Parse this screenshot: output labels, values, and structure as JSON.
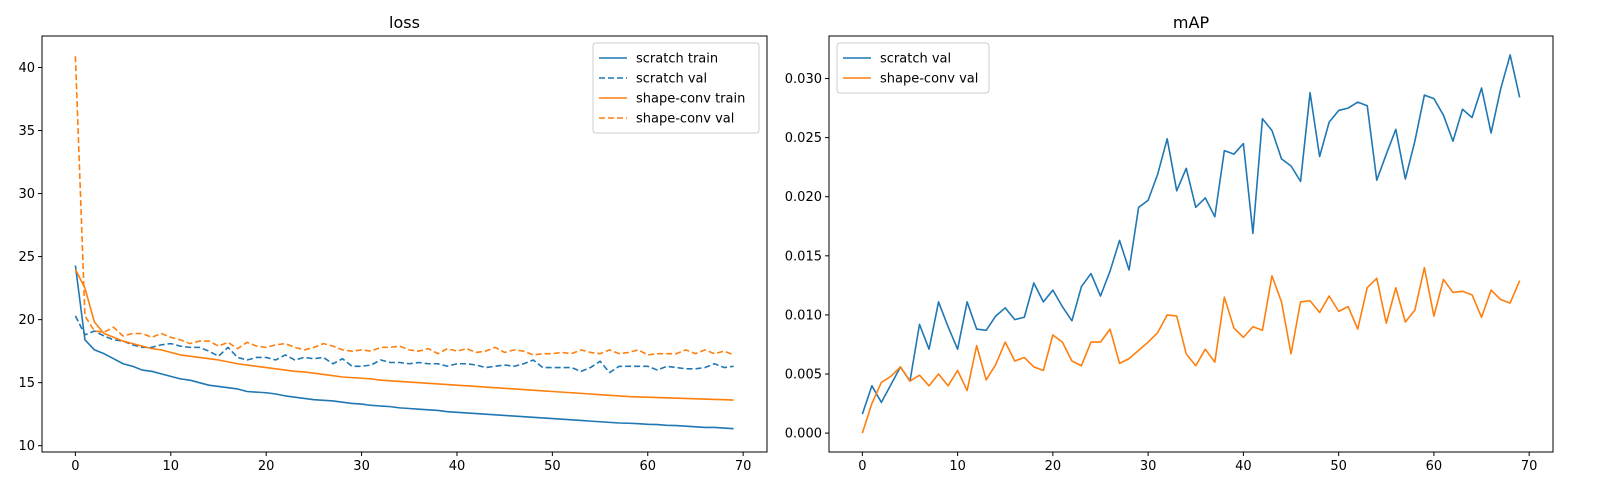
{
  "colors": {
    "scratch": "#1f77b4",
    "shape_conv": "#ff7f0e"
  },
  "chart_data": [
    {
      "type": "line",
      "title": "loss",
      "xlabel": "",
      "ylabel": "",
      "xlim": [
        -3.5,
        72.5
      ],
      "ylim": [
        9.5,
        42.5
      ],
      "xticks": [
        0,
        10,
        20,
        30,
        40,
        50,
        60,
        70
      ],
      "yticks": [
        10,
        15,
        20,
        25,
        30,
        35,
        40
      ],
      "legend": "top-right",
      "series": [
        {
          "name": "scratch train",
          "color": "#1f77b4",
          "dash": "solid",
          "values": [
            24.3,
            18.4,
            17.6,
            17.3,
            16.9,
            16.5,
            16.3,
            16.0,
            15.9,
            15.7,
            15.5,
            15.3,
            15.2,
            15.0,
            14.8,
            14.7,
            14.6,
            14.5,
            14.3,
            14.25,
            14.2,
            14.1,
            13.95,
            13.85,
            13.75,
            13.65,
            13.6,
            13.55,
            13.45,
            13.35,
            13.3,
            13.2,
            13.15,
            13.1,
            13.0,
            12.95,
            12.9,
            12.85,
            12.8,
            12.7,
            12.65,
            12.6,
            12.55,
            12.5,
            12.45,
            12.4,
            12.35,
            12.3,
            12.25,
            12.2,
            12.15,
            12.1,
            12.05,
            12.0,
            11.95,
            11.9,
            11.85,
            11.8,
            11.78,
            11.75,
            11.7,
            11.68,
            11.62,
            11.6,
            11.55,
            11.5,
            11.45,
            11.45,
            11.4,
            11.35
          ]
        },
        {
          "name": "scratch val",
          "color": "#1f77b4",
          "dash": "dashed",
          "values": [
            20.3,
            18.8,
            19.1,
            18.7,
            18.4,
            18.3,
            18.0,
            17.8,
            17.8,
            18.0,
            18.1,
            17.9,
            17.8,
            17.8,
            17.5,
            17.1,
            17.8,
            17.0,
            16.8,
            17.0,
            17.0,
            16.8,
            17.2,
            16.8,
            17.0,
            16.9,
            17.0,
            16.5,
            16.9,
            16.3,
            16.3,
            16.4,
            16.8,
            16.6,
            16.6,
            16.5,
            16.6,
            16.5,
            16.5,
            16.3,
            16.5,
            16.5,
            16.4,
            16.2,
            16.3,
            16.4,
            16.3,
            16.5,
            16.8,
            16.2,
            16.2,
            16.2,
            16.2,
            15.9,
            16.2,
            16.7,
            15.8,
            16.3,
            16.3,
            16.3,
            16.3,
            16.0,
            16.3,
            16.2,
            16.1,
            16.1,
            16.2,
            16.5,
            16.2,
            16.3
          ]
        },
        {
          "name": "shape-conv train",
          "color": "#ff7f0e",
          "dash": "solid",
          "values": [
            24.0,
            22.5,
            19.8,
            18.9,
            18.6,
            18.3,
            18.1,
            17.9,
            17.7,
            17.6,
            17.4,
            17.2,
            17.1,
            17.0,
            16.9,
            16.8,
            16.65,
            16.5,
            16.4,
            16.3,
            16.2,
            16.1,
            16.0,
            15.9,
            15.85,
            15.75,
            15.65,
            15.55,
            15.45,
            15.4,
            15.35,
            15.3,
            15.2,
            15.15,
            15.1,
            15.05,
            15.0,
            14.95,
            14.9,
            14.85,
            14.8,
            14.75,
            14.7,
            14.65,
            14.6,
            14.55,
            14.5,
            14.45,
            14.4,
            14.35,
            14.3,
            14.25,
            14.2,
            14.15,
            14.1,
            14.05,
            14.0,
            13.95,
            13.9,
            13.87,
            13.85,
            13.82,
            13.8,
            13.77,
            13.75,
            13.72,
            13.7,
            13.67,
            13.65,
            13.62
          ]
        },
        {
          "name": "shape-conv val",
          "color": "#ff7f0e",
          "dash": "dashed",
          "values": [
            40.9,
            20.3,
            19.1,
            19.0,
            19.4,
            18.7,
            18.9,
            18.9,
            18.6,
            18.9,
            18.6,
            18.4,
            18.1,
            18.3,
            18.3,
            17.9,
            18.2,
            17.7,
            18.2,
            17.9,
            17.8,
            18.0,
            18.1,
            17.8,
            17.6,
            17.8,
            18.1,
            17.9,
            17.6,
            17.5,
            17.6,
            17.5,
            17.8,
            17.8,
            17.9,
            17.6,
            17.5,
            17.7,
            17.3,
            17.7,
            17.5,
            17.7,
            17.4,
            17.5,
            17.8,
            17.4,
            17.6,
            17.5,
            17.2,
            17.3,
            17.3,
            17.4,
            17.3,
            17.6,
            17.4,
            17.3,
            17.6,
            17.3,
            17.4,
            17.6,
            17.2,
            17.3,
            17.3,
            17.3,
            17.6,
            17.3,
            17.6,
            17.3,
            17.5,
            17.2
          ]
        }
      ]
    },
    {
      "type": "line",
      "title": "mAP",
      "xlabel": "",
      "ylabel": "",
      "xlim": [
        -3.5,
        72.5
      ],
      "ylim": [
        -0.0016,
        0.0336
      ],
      "xticks": [
        0,
        10,
        20,
        30,
        40,
        50,
        60,
        70
      ],
      "yticks": [
        0.0,
        0.005,
        0.01,
        0.015,
        0.02,
        0.025,
        0.03
      ],
      "ytick_labels": [
        "0.000",
        "0.005",
        "0.010",
        "0.015",
        "0.020",
        "0.025",
        "0.030"
      ],
      "legend": "top-left",
      "series": [
        {
          "name": "scratch val",
          "color": "#1f77b4",
          "dash": "solid",
          "values": [
            0.0016,
            0.004,
            0.0026,
            0.0041,
            0.0056,
            0.0044,
            0.0092,
            0.0071,
            0.0111,
            0.009,
            0.0071,
            0.0111,
            0.0088,
            0.0087,
            0.0099,
            0.0106,
            0.0096,
            0.0098,
            0.0127,
            0.0111,
            0.0121,
            0.0107,
            0.0095,
            0.0124,
            0.0135,
            0.0116,
            0.0137,
            0.0163,
            0.0138,
            0.0191,
            0.0197,
            0.0219,
            0.0249,
            0.0205,
            0.0224,
            0.0191,
            0.0199,
            0.0183,
            0.0239,
            0.0236,
            0.0245,
            0.0169,
            0.0266,
            0.0256,
            0.0232,
            0.0226,
            0.0213,
            0.0288,
            0.0234,
            0.0263,
            0.0273,
            0.0275,
            0.028,
            0.0277,
            0.0214,
            0.0236,
            0.0257,
            0.0215,
            0.0247,
            0.0286,
            0.0283,
            0.0269,
            0.0247,
            0.0274,
            0.0267,
            0.0292,
            0.0254,
            0.0291,
            0.032,
            0.0284
          ]
        },
        {
          "name": "shape-conv val",
          "color": "#ff7f0e",
          "dash": "solid",
          "values": [
            0.0,
            0.0025,
            0.0043,
            0.0048,
            0.0056,
            0.0044,
            0.0049,
            0.004,
            0.005,
            0.004,
            0.0053,
            0.0036,
            0.0074,
            0.0045,
            0.0058,
            0.0077,
            0.0061,
            0.0064,
            0.0056,
            0.0053,
            0.0083,
            0.0077,
            0.0061,
            0.0057,
            0.0077,
            0.0077,
            0.0088,
            0.0059,
            0.0063,
            0.007,
            0.0077,
            0.0085,
            0.01,
            0.0099,
            0.0067,
            0.0057,
            0.0071,
            0.006,
            0.0115,
            0.0089,
            0.0081,
            0.009,
            0.0087,
            0.0133,
            0.0111,
            0.0067,
            0.0111,
            0.0112,
            0.0102,
            0.0116,
            0.0103,
            0.0107,
            0.0088,
            0.0123,
            0.0131,
            0.0093,
            0.0123,
            0.0094,
            0.0104,
            0.014,
            0.0099,
            0.013,
            0.0119,
            0.012,
            0.0117,
            0.0098,
            0.0121,
            0.0113,
            0.011,
            0.0129
          ]
        }
      ]
    }
  ]
}
